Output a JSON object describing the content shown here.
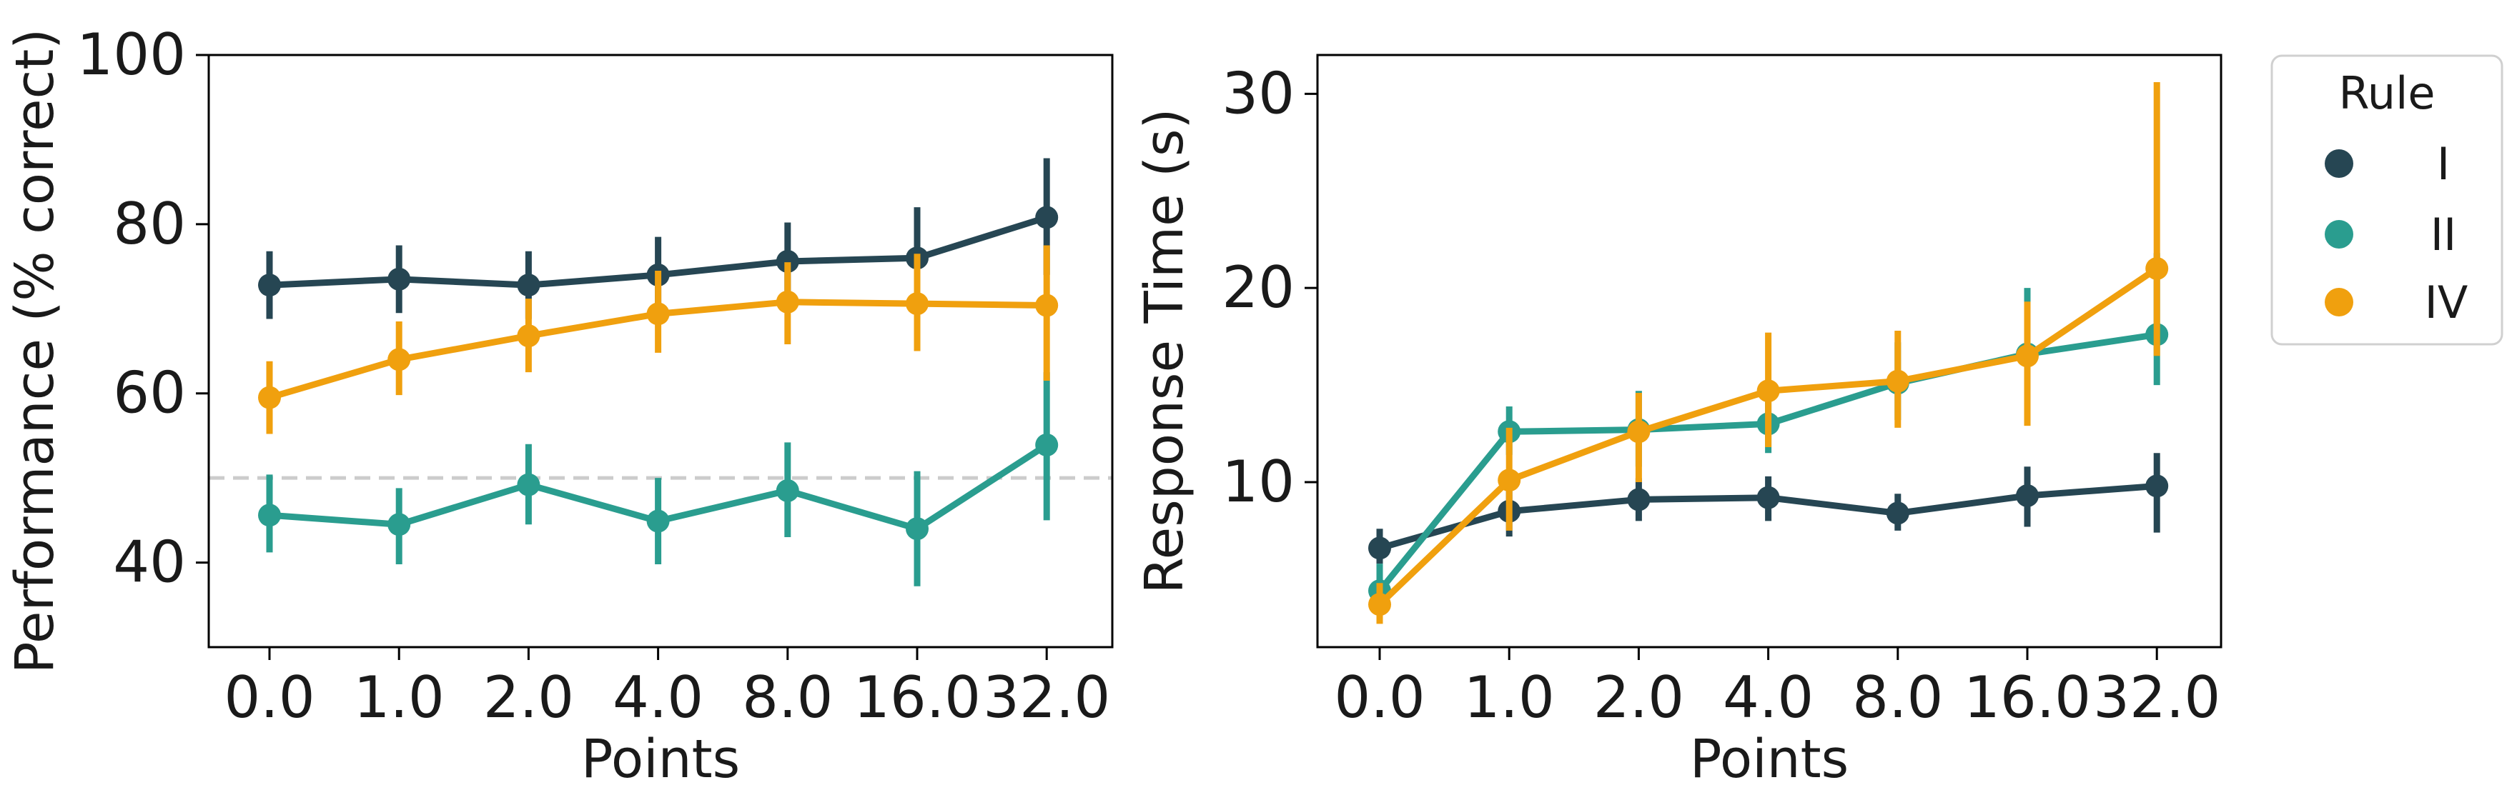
{
  "chart_data": [
    {
      "type": "line",
      "categories": [
        "0.0",
        "1.0",
        "2.0",
        "4.0",
        "8.0",
        "16.0",
        "32.0"
      ],
      "xlabel": "Points",
      "ylabel": "Performance (% correct)",
      "ylim": [
        30,
        100
      ],
      "yticks": [
        40,
        60,
        80,
        100
      ],
      "reference_line": {
        "y": 50,
        "style": "dashed",
        "color": "#cccccc"
      },
      "series": [
        {
          "name": "I",
          "color": "#264653",
          "values": [
            72.8,
            73.5,
            72.8,
            74.0,
            75.6,
            76.0,
            80.8
          ],
          "ci_low": [
            68.8,
            69.5,
            68.8,
            69.5,
            71.0,
            70.0,
            74.0
          ],
          "ci_high": [
            76.8,
            77.5,
            76.8,
            78.5,
            80.2,
            82.0,
            87.8
          ]
        },
        {
          "name": "II",
          "color": "#2a9d8f",
          "values": [
            45.6,
            44.5,
            49.2,
            44.9,
            48.5,
            44.0,
            53.9
          ],
          "ci_low": [
            41.2,
            39.8,
            44.5,
            39.8,
            43.0,
            37.2,
            45.0
          ],
          "ci_high": [
            50.4,
            48.8,
            54.0,
            50.0,
            54.2,
            50.8,
            62.5
          ]
        },
        {
          "name": "IV",
          "color": "#f0a00e",
          "values": [
            59.5,
            64.0,
            66.8,
            69.4,
            70.8,
            70.6,
            70.4
          ],
          "ci_low": [
            55.2,
            59.8,
            62.5,
            64.8,
            65.8,
            65.0,
            61.5
          ],
          "ci_high": [
            63.8,
            68.5,
            71.2,
            74.5,
            75.5,
            76.5,
            77.5
          ]
        }
      ]
    },
    {
      "type": "line",
      "categories": [
        "0.0",
        "1.0",
        "2.0",
        "4.0",
        "8.0",
        "16.0",
        "32.0"
      ],
      "xlabel": "Points",
      "ylabel": "Response Time (s)",
      "ylim": [
        1.5,
        32
      ],
      "yticks": [
        10,
        20,
        30
      ],
      "series": [
        {
          "name": "I",
          "color": "#264653",
          "values": [
            6.6,
            8.5,
            9.1,
            9.2,
            8.4,
            9.3,
            9.8
          ],
          "ci_low": [
            5.8,
            7.2,
            8.0,
            8.0,
            7.5,
            7.7,
            7.4
          ],
          "ci_high": [
            7.6,
            9.8,
            10.2,
            10.3,
            9.4,
            10.8,
            11.5
          ]
        },
        {
          "name": "II",
          "color": "#2a9d8f",
          "values": [
            4.4,
            12.6,
            12.7,
            13.0,
            15.1,
            16.6,
            17.6
          ],
          "ci_low": [
            3.2,
            11.4,
            10.8,
            11.5,
            13.2,
            13.8,
            15.0
          ],
          "ci_high": [
            5.8,
            13.9,
            14.7,
            14.8,
            17.2,
            20.0,
            21.8
          ]
        },
        {
          "name": "IV",
          "color": "#f0a00e",
          "values": [
            3.7,
            10.1,
            12.6,
            14.7,
            15.2,
            16.5,
            21.0
          ],
          "ci_low": [
            2.7,
            7.5,
            10.0,
            11.8,
            12.8,
            12.9,
            16.5
          ],
          "ci_high": [
            4.8,
            12.8,
            14.6,
            17.7,
            17.8,
            19.3,
            30.6
          ]
        }
      ]
    }
  ],
  "legend": {
    "title": "Rule",
    "position": "outside-right",
    "entries": [
      {
        "label": "I",
        "color": "#264653"
      },
      {
        "label": "II",
        "color": "#2a9d8f"
      },
      {
        "label": "IV",
        "color": "#f0a00e"
      }
    ]
  }
}
